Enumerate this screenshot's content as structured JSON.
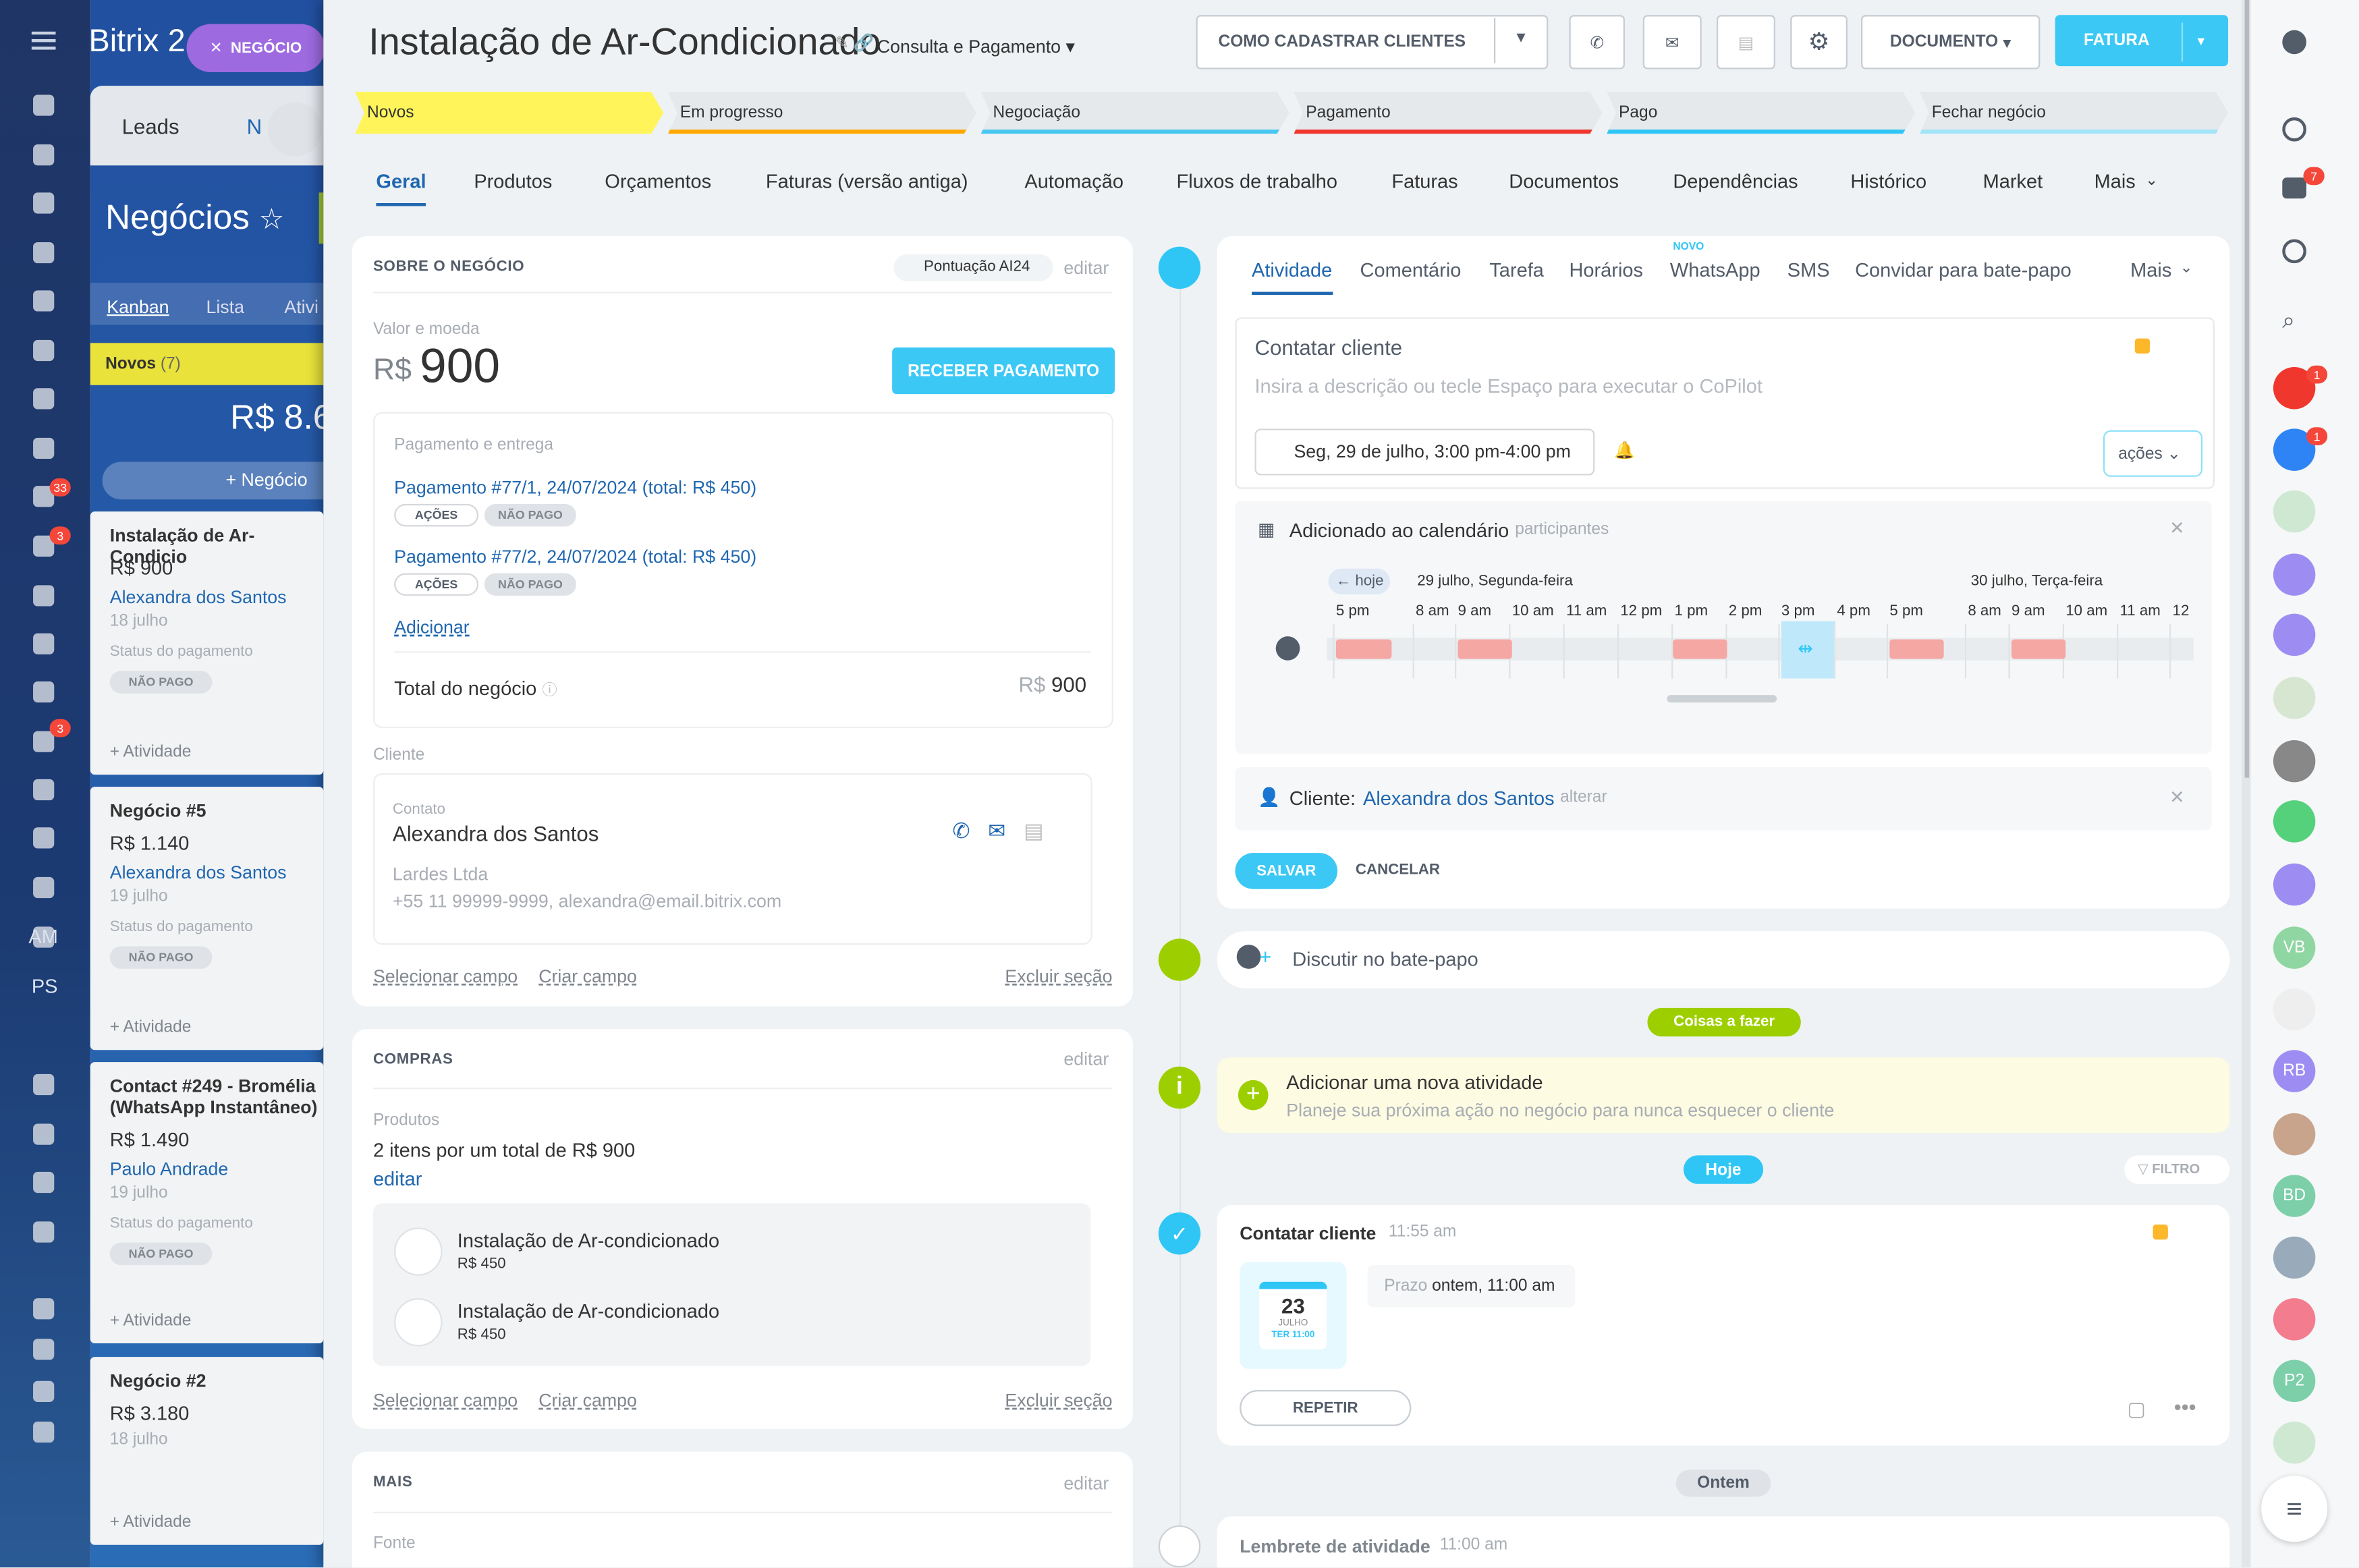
{
  "sidebar": {
    "logo": "Bitrix 2",
    "badges": [
      "33",
      "3",
      "3"
    ],
    "initials": [
      "AM",
      "PS"
    ]
  },
  "crm": {
    "tabs": [
      "Leads",
      "N"
    ],
    "title": "Negócios",
    "views": [
      "Kanban",
      "Lista",
      "Ativi"
    ],
    "column": "Novos",
    "count": "(7)",
    "total": "R$ 8.6",
    "add_deal": "Negócio",
    "cards": [
      {
        "title": "Instalação de Ar-Condicio",
        "amount": "R$ 900",
        "contact": "Alexandra dos Santos",
        "date": "18 julho",
        "status_label": "Status do pagamento",
        "status": "NÃO PAGO",
        "action": "+ Atividade"
      },
      {
        "title": "Negócio #5",
        "amount": "R$ 1.140",
        "contact": "Alexandra dos Santos",
        "date": "19 julho",
        "status_label": "Status do pagamento",
        "status": "NÃO PAGO",
        "action": "+ Atividade"
      },
      {
        "title": "Contact #249 - Bromélia (WhatsApp Instantâneo)",
        "amount": "R$ 1.490",
        "contact": "Paulo Andrade",
        "date": "19 julho",
        "status_label": "Status do pagamento",
        "status": "NÃO PAGO",
        "action": "+ Atividade"
      },
      {
        "title": "Negócio #2",
        "amount": "R$ 3.180",
        "date": "18 julho",
        "action": "+ Atividade"
      }
    ]
  },
  "chip": "NEGÓCIO",
  "header": {
    "title": "Instalação de Ar-Condicionado",
    "category": "Consulta e Pagamento",
    "buttons": [
      "COMO CADASTRAR CLIENTES",
      "DOCUMENTO",
      "FATURA"
    ]
  },
  "stages": [
    "Novos",
    "Em progresso",
    "Negociação",
    "Pagamento",
    "Pago",
    "Fechar negócio"
  ],
  "tabs": [
    "Geral",
    "Produtos",
    "Orçamentos",
    "Faturas (versão antiga)",
    "Automação",
    "Fluxos de trabalho",
    "Faturas",
    "Documentos",
    "Dependências",
    "Histórico",
    "Market",
    "Mais"
  ],
  "about": {
    "title": "SOBRE O NEGÓCIO",
    "ai": "Pontuação AI24",
    "edit": "editar",
    "amount_label": "Valor e moeda",
    "currency": "R$",
    "amount": "900",
    "pay_button": "RECEBER PAGAMENTO",
    "payments_label": "Pagamento e entrega",
    "payments": [
      {
        "title": "Pagamento #77/1, 24/07/2024 (total: R$ 450)",
        "actions": "AÇÕES",
        "status": "NÃO PAGO"
      },
      {
        "title": "Pagamento #77/2, 24/07/2024 (total: R$ 450)",
        "actions": "AÇÕES",
        "status": "NÃO PAGO"
      }
    ],
    "add": "Adicionar",
    "total_label": "Total do negócio",
    "total_currency": "R$",
    "total": "900",
    "client_label": "Cliente",
    "contact_label": "Contato",
    "contact": "Alexandra dos Santos",
    "company": "Lardes Ltda",
    "contact_info": "+55 11 99999-9999, alexandra@email.bitrix.com",
    "select_field": "Selecionar campo",
    "create_field": "Criar campo",
    "delete_section": "Excluir seção"
  },
  "purchases": {
    "title": "COMPRAS",
    "edit": "editar",
    "products_label": "Produtos",
    "summary": "2 itens por um total de R$ 900",
    "summary_edit": "editar",
    "items": [
      {
        "name": "Instalação de Ar-condicionado",
        "price": "R$ 450"
      },
      {
        "name": "Instalação de Ar-condicionado",
        "price": "R$ 450"
      }
    ],
    "select_field": "Selecionar campo",
    "create_field": "Criar campo",
    "delete_section": "Excluir seção"
  },
  "more": {
    "title": "MAIS",
    "edit": "editar",
    "source": "Fonte"
  },
  "activity": {
    "tabs": [
      "Atividade",
      "Comentário",
      "Tarefa",
      "Horários",
      "WhatsApp",
      "SMS",
      "Convidar para bate-papo",
      "Mais"
    ],
    "new_badge": "NOVO",
    "subject": "Contatar cliente",
    "placeholder": "Insira a descrição ou tecle Espaço para executar o CoPilot",
    "date": "Seg, 29 de julho, 3:00 pm-4:00 pm",
    "actions": "ações",
    "calendar": {
      "title": "Adicionado ao calendário",
      "participants": "participantes",
      "today": "hoje",
      "day1": "29 julho, Segunda-feira",
      "day2": "30 julho, Terça-feira",
      "hours": [
        "5 pm",
        "8 am",
        "9 am",
        "10 am",
        "11 am",
        "12 pm",
        "1 pm",
        "2 pm",
        "3 pm",
        "4 pm",
        "5 pm",
        "8 am",
        "9 am",
        "10 am",
        "11 am",
        "12"
      ]
    },
    "client_label": "Cliente:",
    "client": "Alexandra dos Santos",
    "change": "alterar",
    "save": "SALVAR",
    "cancel": "CANCELAR"
  },
  "timeline": {
    "chat": "Discutir no bate-papo",
    "todo": "Coisas a fazer",
    "new_title": "Adicionar uma nova atividade",
    "new_text": "Planeje sua próxima ação no negócio para nunca esquecer o cliente",
    "today": "Hoje",
    "filter": "FILTRO",
    "item_title": "Contatar cliente",
    "item_time": "11:55 am",
    "cal_day": "23",
    "cal_month": "JULHO",
    "cal_time": "TER 11:00",
    "deadline_label": "Prazo",
    "deadline": "ontem, 11:00 am",
    "repeat": "REPETIR",
    "yesterday": "Ontem",
    "reminder": "Lembrete de atividade",
    "reminder_time": "11:00 am"
  },
  "right_bar": {
    "badges": [
      "7",
      "1",
      "1"
    ],
    "initials": [
      "VB",
      "RB",
      "BD",
      "P2"
    ]
  }
}
